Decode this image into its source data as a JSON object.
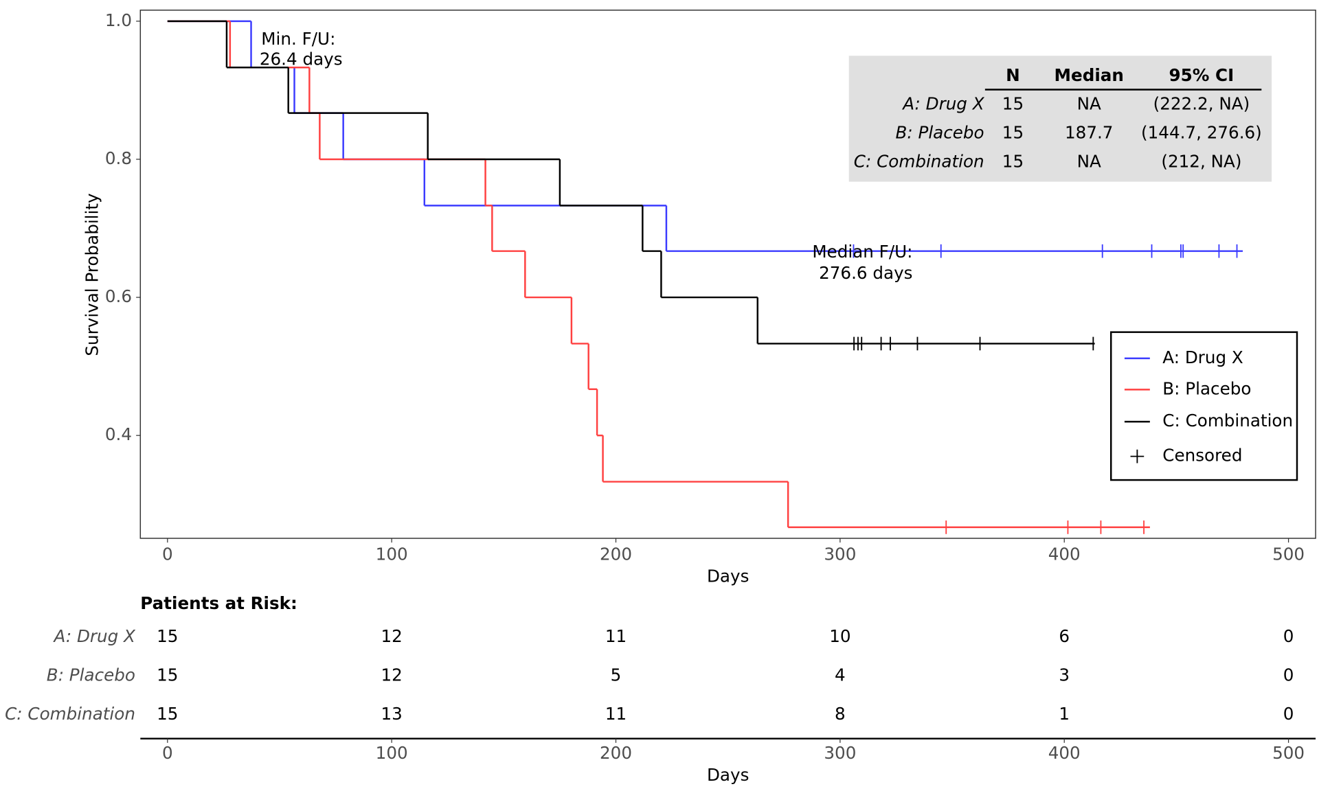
{
  "chart_data": {
    "type": "km",
    "y_label": "Survival Probability",
    "x_label": "Days",
    "xlim": [
      -12.1,
      512.1
    ],
    "ylim": [
      0.251,
      1.016
    ],
    "xticks": [
      0,
      100,
      200,
      300,
      400,
      500
    ],
    "yticks": [
      0.4,
      0.6,
      0.8,
      {
        "value": 1,
        "label": "1.0"
      }
    ],
    "series": [
      {
        "name": "A: Drug X",
        "color": "#3b3bff",
        "times": [
          0,
          37.3,
          56.6,
          78.4,
          114.6,
          222.5,
          479.6
        ],
        "surv": [
          1,
          0.933,
          0.867,
          0.8,
          0.733,
          0.667,
          0.667
        ],
        "censored": {
          "x": [
            306,
            345,
            417,
            439,
            452,
            453,
            469,
            477
          ],
          "y": [
            0.667,
            0.667,
            0.667,
            0.667,
            0.667,
            0.667,
            0.667,
            0.667
          ]
        }
      },
      {
        "name": "B: Placebo",
        "color": "#ff4040",
        "times": [
          0,
          27.9,
          63.3,
          67.9,
          141.8,
          144.8,
          159.5,
          180.2,
          187.8,
          191.6,
          194.2,
          276.8,
          438.2
        ],
        "surv": [
          1,
          0.933,
          0.867,
          0.8,
          0.733,
          0.667,
          0.6,
          0.533,
          0.467,
          0.4,
          0.333,
          0.267,
          0.267
        ],
        "censored": {
          "x": [
            347.3,
            401.6,
            416.3,
            435.5
          ],
          "y": [
            0.267,
            0.267,
            0.267,
            0.267
          ]
        }
      },
      {
        "name": "C: Combination",
        "color": "#000000",
        "times": [
          0,
          26.4,
          53.9,
          116.1,
          175,
          211.9,
          220.2,
          263.2,
          413.6
        ],
        "surv": [
          1,
          0.933,
          0.867,
          0.8,
          0.733,
          0.667,
          0.6,
          0.533,
          0.533
        ],
        "censored": {
          "x": [
            306.2,
            308,
            309.6,
            318.3,
            322.4,
            334.5,
            362.4,
            412.9
          ],
          "y": [
            0.533,
            0.533,
            0.533,
            0.533,
            0.533,
            0.533,
            0.533,
            0.533
          ]
        }
      }
    ],
    "censored_label": "Censored",
    "annotations": [
      {
        "lines": [
          "Min. F/U:",
          "26.4 days"
        ]
      },
      {
        "lines": [
          "Median F/U:",
          "276.6 days"
        ]
      }
    ],
    "summary_table": {
      "header": [
        "N",
        "Median",
        "95% CI"
      ],
      "rows": [
        [
          "A: Drug X",
          "15",
          "NA",
          "(222.2, NA)"
        ],
        [
          "B: Placebo",
          "15",
          "187.7",
          "(144.7, 276.6)"
        ],
        [
          "C: Combination",
          "15",
          "NA",
          "(212, NA)"
        ]
      ]
    },
    "risk_table": {
      "title": "Patients at Risk:",
      "x_label": "Days",
      "times": [
        0,
        100,
        200,
        300,
        400,
        500
      ],
      "rows": [
        {
          "name": "A: Drug X",
          "values": [
            15,
            12,
            11,
            10,
            6,
            0
          ]
        },
        {
          "name": "B: Placebo",
          "values": [
            15,
            12,
            5,
            4,
            3,
            0
          ]
        },
        {
          "name": "C: Combination",
          "values": [
            15,
            13,
            11,
            8,
            1,
            0
          ]
        }
      ]
    }
  }
}
